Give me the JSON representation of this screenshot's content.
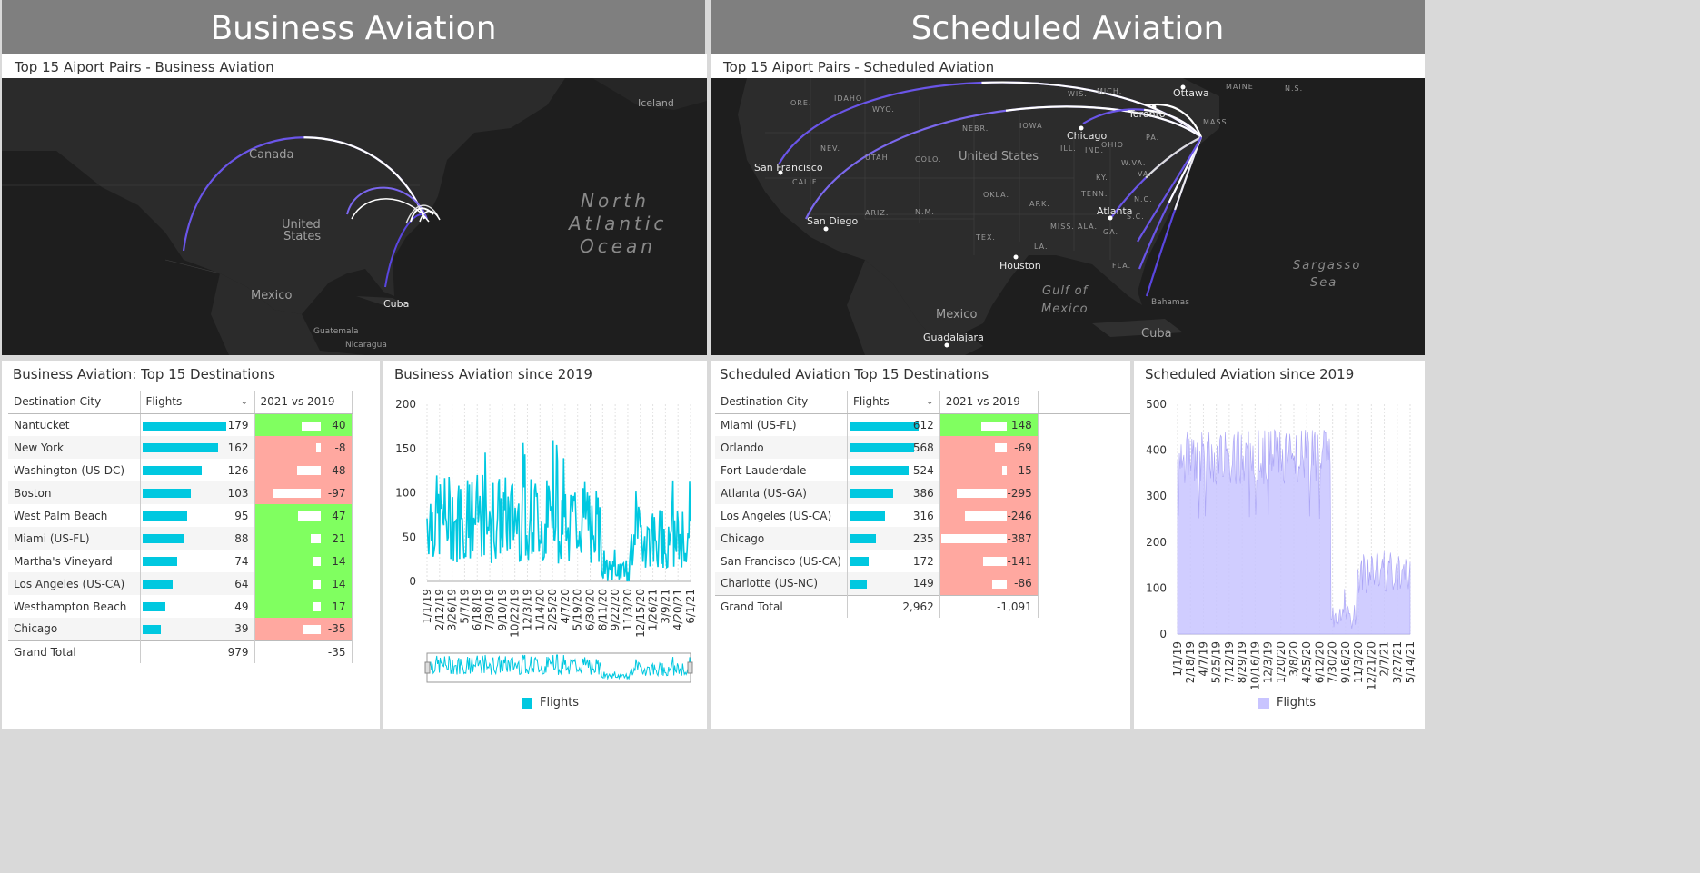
{
  "headers": {
    "business": "Business Aviation",
    "scheduled": "Scheduled Aviation"
  },
  "business_map": {
    "title": "Top 15 Aiport Pairs - Business Aviation",
    "labels": {
      "canada": "Canada",
      "us": "United\nStates",
      "mexico": "Mexico",
      "cuba": "Cuba",
      "guatemala": "Guatemala",
      "nicaragua": "Nicaragua",
      "iceland": "Iceland",
      "ocean1": "North",
      "ocean2": "Atlantic",
      "ocean3": "Ocean"
    }
  },
  "scheduled_map": {
    "title": "Top 15 Aiport Pairs - Scheduled Aviation",
    "cities": [
      "Ottawa",
      "Toronto",
      "Chicago",
      "San Francisco",
      "San Diego",
      "Atlanta",
      "Houston",
      "Guadalajara",
      "Mexico",
      "Cuba",
      "Bahamas"
    ],
    "states": [
      "ORE.",
      "IDAHO",
      "WYO.",
      "NEV.",
      "UTAH",
      "COLO.",
      "CALIF.",
      "ARIZ.",
      "N.M.",
      "TEX.",
      "OKLA.",
      "ARK.",
      "LA.",
      "MISS.",
      "ALA.",
      "GA.",
      "FLA.",
      "TENN.",
      "KY.",
      "IND.",
      "ILL.",
      "OHIO",
      "W.VA.",
      "PA.",
      "N.C.",
      "S.C.",
      "VA.",
      "NEBR.",
      "IOWA",
      "WIS.",
      "MICH.",
      "MAINE",
      "N.S.",
      "MASS."
    ],
    "us": "United States",
    "gulf": [
      "Gulf of",
      "Mexico"
    ],
    "sargasso": [
      "Sargasso",
      "Sea"
    ]
  },
  "business_table": {
    "title": "Business Aviation: Top 15 Destinations",
    "columns": [
      "Destination City",
      "Flights",
      "2021 vs 2019"
    ],
    "rows": [
      {
        "city": "Nantucket",
        "flights": "179",
        "diff": "40",
        "sign": "pos"
      },
      {
        "city": "New York",
        "flights": "162",
        "diff": "-8",
        "sign": "neg"
      },
      {
        "city": "Washington (US-DC)",
        "flights": "126",
        "diff": "-48",
        "sign": "neg"
      },
      {
        "city": "Boston",
        "flights": "103",
        "diff": "-97",
        "sign": "neg"
      },
      {
        "city": "West Palm Beach",
        "flights": "95",
        "diff": "47",
        "sign": "pos"
      },
      {
        "city": "Miami (US-FL)",
        "flights": "88",
        "diff": "21",
        "sign": "pos"
      },
      {
        "city": "Martha's Vineyard",
        "flights": "74",
        "diff": "14",
        "sign": "pos"
      },
      {
        "city": "Los Angeles (US-CA)",
        "flights": "64",
        "diff": "14",
        "sign": "pos"
      },
      {
        "city": "Westhampton Beach",
        "flights": "49",
        "diff": "17",
        "sign": "pos"
      },
      {
        "city": "Chicago",
        "flights": "39",
        "diff": "-35",
        "sign": "neg"
      }
    ],
    "total": {
      "label": "Grand Total",
      "flights": "979",
      "diff": "-35"
    }
  },
  "scheduled_table": {
    "title": "Scheduled Aviation Top 15 Destinations",
    "columns": [
      "Destination City",
      "Flights",
      "2021 vs 2019"
    ],
    "rows": [
      {
        "city": "Miami (US-FL)",
        "flights": "612",
        "diff": "148",
        "sign": "pos"
      },
      {
        "city": "Orlando",
        "flights": "568",
        "diff": "-69",
        "sign": "neg"
      },
      {
        "city": "Fort Lauderdale",
        "flights": "524",
        "diff": "-15",
        "sign": "neg"
      },
      {
        "city": "Atlanta (US-GA)",
        "flights": "386",
        "diff": "-295",
        "sign": "neg"
      },
      {
        "city": "Los Angeles (US-CA)",
        "flights": "316",
        "diff": "-246",
        "sign": "neg"
      },
      {
        "city": "Chicago",
        "flights": "235",
        "diff": "-387",
        "sign": "neg"
      },
      {
        "city": "San Francisco (US-CA)",
        "flights": "172",
        "diff": "-141",
        "sign": "neg"
      },
      {
        "city": "Charlotte (US-NC)",
        "flights": "149",
        "diff": "-86",
        "sign": "neg"
      }
    ],
    "total": {
      "label": "Grand Total",
      "flights": "2,962",
      "diff": "-1,091"
    }
  },
  "colors": {
    "flight_bar": "#00c8e0",
    "positive": "#80ff60",
    "negative": "#ffa8a0",
    "business_line": "#00c8e0",
    "scheduled_area": "#c8c4ff",
    "arc": "#6a55e8"
  },
  "chart_data": [
    {
      "type": "line",
      "title": "Business Aviation since 2019",
      "series": [
        {
          "name": "Flights",
          "color": "#00c8e0"
        }
      ],
      "x_ticks": [
        "1/1/19",
        "2/12/19",
        "3/26/19",
        "5/7/19",
        "6/18/19",
        "7/30/19",
        "9/10/19",
        "10/22/19",
        "12/3/19",
        "1/14/20",
        "2/25/20",
        "4/7/20",
        "5/19/20",
        "6/30/20",
        "8/11/20",
        "9/22/20",
        "11/3/20",
        "12/15/20",
        "1/26/21",
        "3/9/21",
        "4/20/21",
        "6/1/21"
      ],
      "y_ticks": [
        "0",
        "50",
        "100",
        "150",
        "200"
      ],
      "ylim": [
        0,
        200
      ],
      "segments": [
        {
          "from": "1/1/19",
          "to": "3/1/20",
          "min": 20,
          "max": 160,
          "mean": 72
        },
        {
          "from": "3/1/20",
          "to": "5/1/20",
          "min": 2,
          "max": 40,
          "mean": 12
        },
        {
          "from": "5/1/20",
          "to": "6/14/21",
          "min": 15,
          "max": 115,
          "mean": 50
        }
      ],
      "legend": "Flights"
    },
    {
      "type": "area",
      "title": "Scheduled Aviation since 2019",
      "series": [
        {
          "name": "Flights",
          "color": "#c8c4ff"
        }
      ],
      "x_ticks": [
        "1/1/19",
        "2/18/19",
        "4/7/19",
        "5/25/19",
        "7/12/19",
        "8/29/19",
        "10/16/19",
        "12/3/19",
        "1/20/20",
        "3/8/20",
        "4/25/20",
        "6/12/20",
        "7/30/20",
        "9/16/20",
        "11/3/20",
        "12/21/20",
        "2/7/21",
        "3/27/21",
        "5/14/21"
      ],
      "y_ticks": [
        "0",
        "100",
        "200",
        "300",
        "400",
        "500"
      ],
      "ylim": [
        0,
        500
      ],
      "segments": [
        {
          "from": "1/1/19",
          "to": "3/15/20",
          "min": 250,
          "max": 420,
          "mean": 385
        },
        {
          "from": "3/15/20",
          "to": "5/15/20",
          "min": 20,
          "max": 100,
          "mean": 35
        },
        {
          "from": "5/15/20",
          "to": "6/14/21",
          "min": 80,
          "max": 200,
          "mean": 130
        }
      ],
      "legend": "Flights"
    }
  ]
}
